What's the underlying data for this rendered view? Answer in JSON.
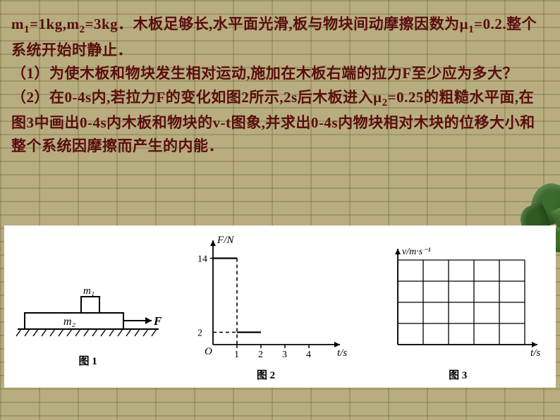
{
  "problem": {
    "line1_pre": "m",
    "line1_s1": "1",
    "line1_mid1": "=1kg,m",
    "line1_s2": "2",
    "line1_mid2": "=3kg．木板足够长,水平面光滑,板与物块间动摩擦因数为μ",
    "line1_s3": "1",
    "line1_end": "=0.2.整个系统开始时静止．",
    "q1": "（1）为使木板和物块发生相对运动,施加在木板右端的拉力F至少应为多大？",
    "q2_a": "（2）在0‐4s内,若拉力F的变化如图2所示,2s后木板进入μ",
    "q2_s": "2",
    "q2_b": "=0.25的粗糙水平面,在图3中画出0‐4s内木板和物块的v‐t图象,并求出0‐4s内物块相对木块的位移大小和整个系统因摩擦而产生的内能．"
  },
  "fig1": {
    "label": "图 1",
    "m1_label": "m₁",
    "m2_label": "m₂",
    "F_label": "F",
    "colors": {
      "stroke": "#000000",
      "fill_none": "none"
    }
  },
  "fig2": {
    "label": "图 2",
    "y_label": "F/N",
    "x_label": "t/s",
    "x_ticks": [
      "1",
      "2",
      "3",
      "4"
    ],
    "y_ticks": [
      {
        "v": 2,
        "label": "2"
      },
      {
        "v": 14,
        "label": "14"
      }
    ],
    "y_max": 16,
    "x_max": 5,
    "series": {
      "solid": [
        [
          0,
          14
        ],
        [
          1,
          14
        ]
      ],
      "solid2": [
        [
          1,
          2
        ],
        [
          2,
          2
        ]
      ],
      "dash_v": [
        [
          1,
          14
        ],
        [
          1,
          0
        ]
      ],
      "dash_h": [
        [
          0,
          2
        ],
        [
          1,
          2
        ]
      ]
    },
    "colors": {
      "axis": "#000000",
      "line": "#000000",
      "dash": "#000000"
    },
    "line_width": 2.2
  },
  "fig3": {
    "label": "图 3",
    "y_label": "v/m·s⁻¹",
    "x_label": "t/s",
    "grid_cols": 5,
    "grid_rows": 4,
    "colors": {
      "axis": "#000000",
      "grid": "#000000"
    }
  },
  "style": {
    "text_color": "#5a0d0d",
    "bg_color": "#b4ab7f",
    "figure_bg": "#ffffff",
    "font_size_pt": 16
  }
}
